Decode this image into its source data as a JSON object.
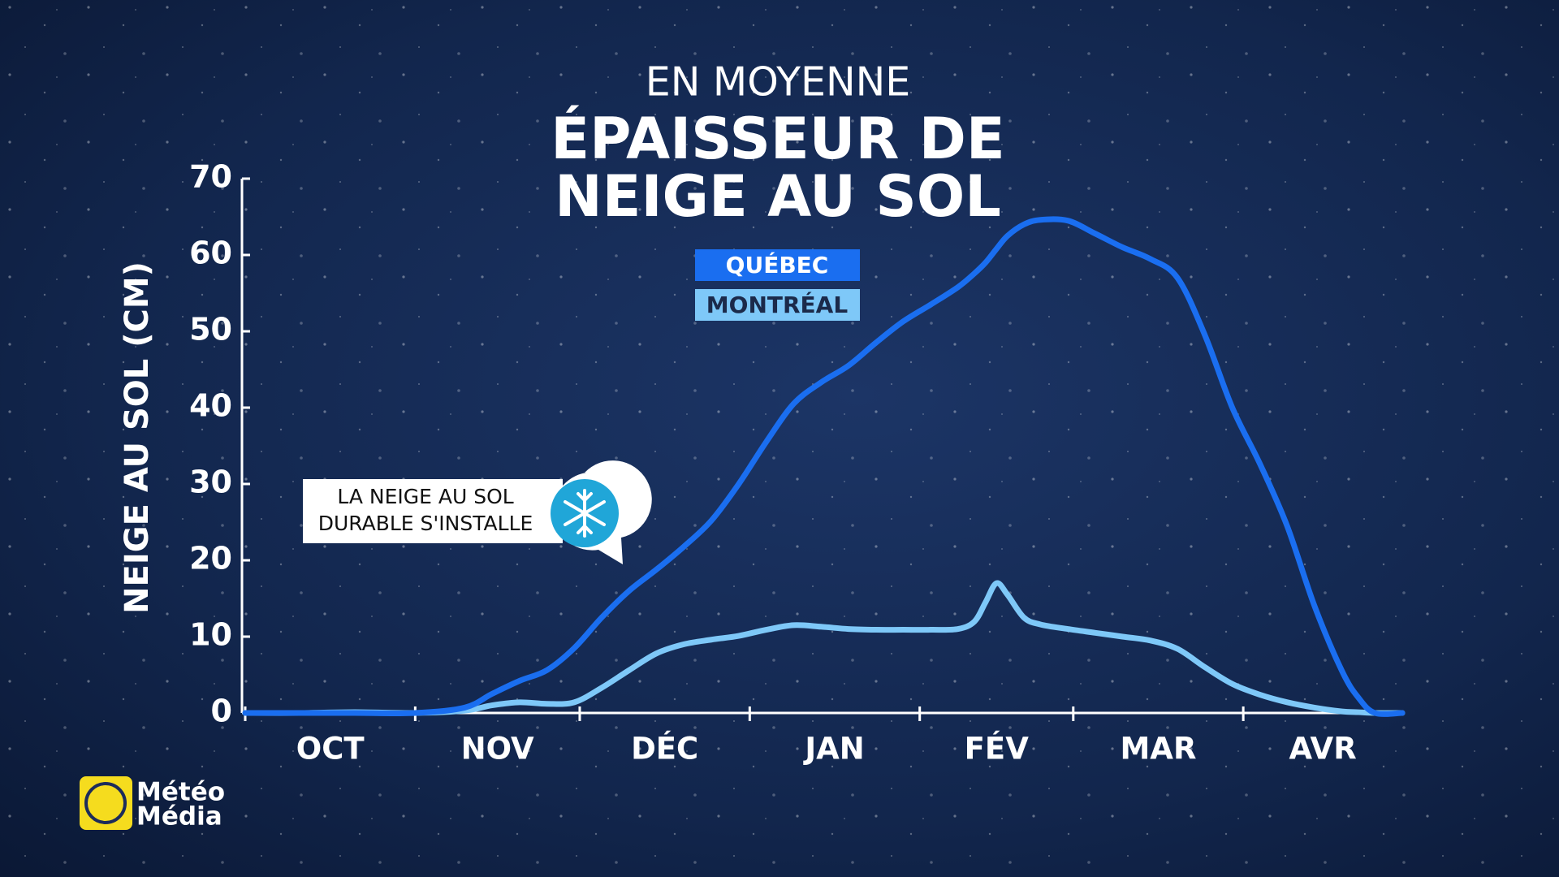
{
  "chart_data": {
    "type": "line",
    "subtitle": "EN MOYENNE",
    "title": [
      "ÉPAISSEUR DE",
      "NEIGE AU SOL"
    ],
    "y_label": "NEIGE AU SOL (CM)",
    "x": [
      0,
      10,
      20,
      31,
      40,
      45,
      50,
      55,
      60,
      65,
      70,
      75,
      80,
      85,
      90,
      95,
      100,
      105,
      110,
      115,
      120,
      125,
      130,
      133,
      135,
      137,
      139,
      142,
      145,
      150,
      155,
      160,
      165,
      170,
      175,
      180,
      185,
      190,
      195,
      200,
      203,
      206,
      211
    ],
    "series": [
      {
        "name": "QUÉBEC",
        "color": "#1a6ef0",
        "values": [
          0,
          0,
          0,
          0,
          0.7,
          2.5,
          4.2,
          5.6,
          8.5,
          12.5,
          16,
          18.8,
          21.8,
          25.2,
          30,
          35.5,
          40.5,
          43.3,
          45.5,
          48.5,
          51.3,
          53.5,
          55.8,
          57.6,
          59,
          60.8,
          62.5,
          64,
          64.6,
          64.5,
          62.8,
          61,
          59.5,
          57,
          49.5,
          40,
          32.7,
          24.5,
          14,
          5.5,
          2,
          0,
          0
        ]
      },
      {
        "name": "MONTRÉAL",
        "color": "#7ec8f8",
        "values": [
          0,
          0,
          0.1,
          0,
          0.3,
          1,
          1.4,
          1.2,
          1.4,
          3.3,
          5.6,
          7.8,
          9,
          9.6,
          10.1,
          10.9,
          11.5,
          11.3,
          11,
          10.9,
          10.9,
          10.9,
          11,
          12,
          14.5,
          17,
          15.5,
          12.5,
          11.6,
          11,
          10.5,
          10,
          9.5,
          8.4,
          6,
          3.8,
          2.4,
          1.4,
          0.7,
          0.2,
          0.1,
          0,
          0
        ]
      }
    ],
    "xlim": [
      0,
      211
    ],
    "xticks": [
      {
        "value": 0,
        "label": "OCT"
      },
      {
        "value": 31,
        "label": "NOV"
      },
      {
        "value": 61,
        "label": "DÉC"
      },
      {
        "value": 92,
        "label": "JAN"
      },
      {
        "value": 123,
        "label": "FÉV"
      },
      {
        "value": 151,
        "label": "MAR"
      },
      {
        "value": 182,
        "label": "AVR"
      }
    ],
    "ylim": [
      0,
      70
    ],
    "yticks": [
      0,
      10,
      20,
      30,
      40,
      50,
      60,
      70
    ],
    "annotations": [
      {
        "text": [
          "LA NEIGE AU SOL",
          "DURABLE S'INSTALLE"
        ]
      }
    ]
  },
  "logo": [
    "Météo",
    "Média"
  ]
}
